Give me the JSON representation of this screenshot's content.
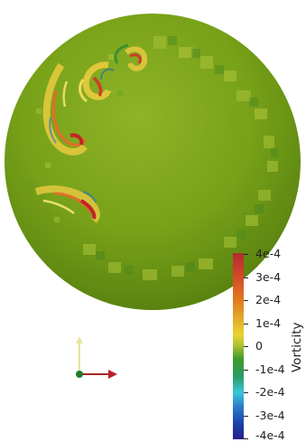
{
  "viewport": {
    "name": "render-view",
    "background": "#ffffff"
  },
  "sphere": {
    "base_color": "#6f9a14",
    "highlight_color": "#9bbd30",
    "shadow_color": "#5f8710"
  },
  "colorbar": {
    "title": "Vorticity",
    "labels": [
      "4e-4",
      "3e-4",
      "2e-4",
      "1e-4",
      "0",
      "-1e-4",
      "-2e-4",
      "-3e-4",
      "-4e-4"
    ],
    "colors": {
      "top": "#b22b2b",
      "orange": "#e07a1f",
      "yellow": "#e8d531",
      "green": "#3a9a2a",
      "cyan": "#38c6d8",
      "blue": "#1c3fa8",
      "bottom": "#2a1f8a"
    }
  },
  "axes": {
    "icons": [
      "y-axis-arrow-icon",
      "x-axis-arrow-icon",
      "z-axis-dot-icon"
    ]
  }
}
